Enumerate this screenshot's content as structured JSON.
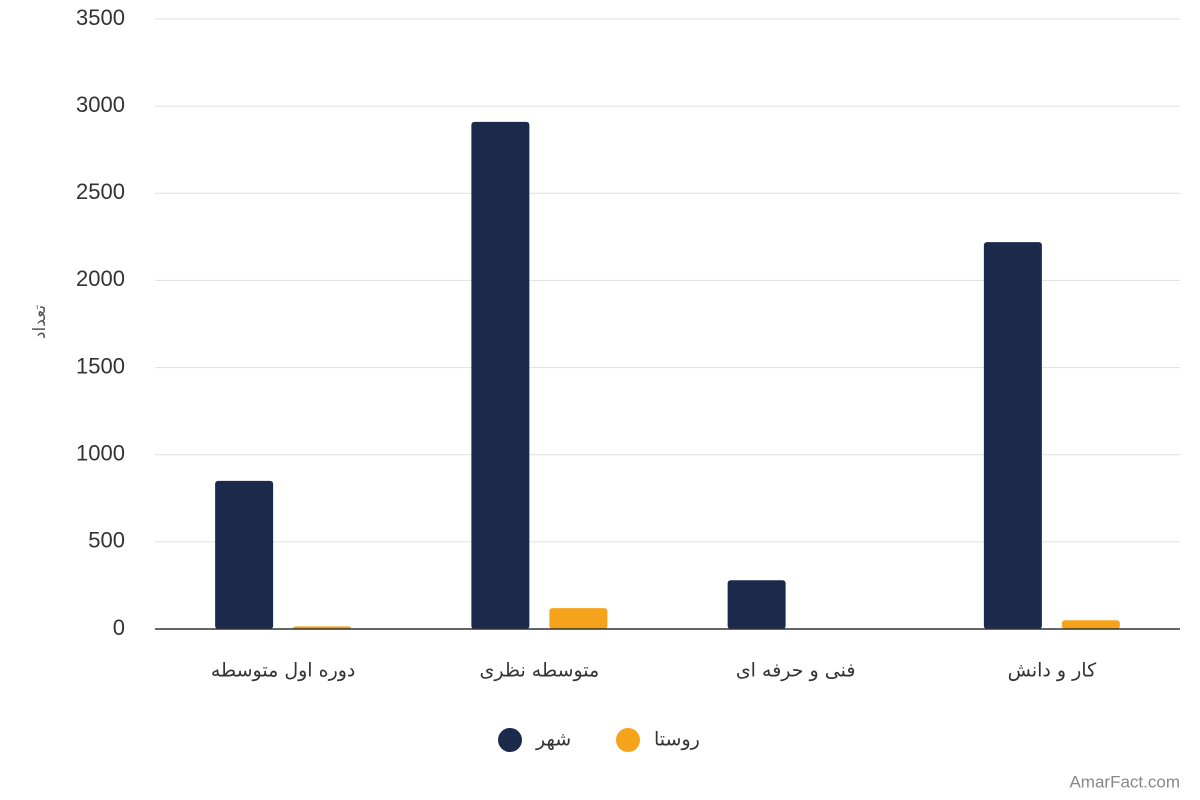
{
  "chart_data": {
    "type": "bar",
    "y_label": "تعداد",
    "watermark": "AmarFact.com",
    "categories": [
      "دوره اول متوسطه",
      "متوسطه نظری",
      "فنی و حرفه ای",
      "کار و دانش"
    ],
    "series": [
      {
        "name": "شهر",
        "color": "#1b2a4a",
        "values": [
          850,
          2910,
          280,
          2220
        ]
      },
      {
        "name": "روستا",
        "color": "#f5a31a",
        "values": [
          15,
          120,
          0,
          50
        ]
      }
    ],
    "ylim": [
      0,
      3500
    ],
    "yticks": [
      0,
      500,
      1000,
      1500,
      2000,
      2500,
      3000,
      3500
    ],
    "grid": true
  }
}
